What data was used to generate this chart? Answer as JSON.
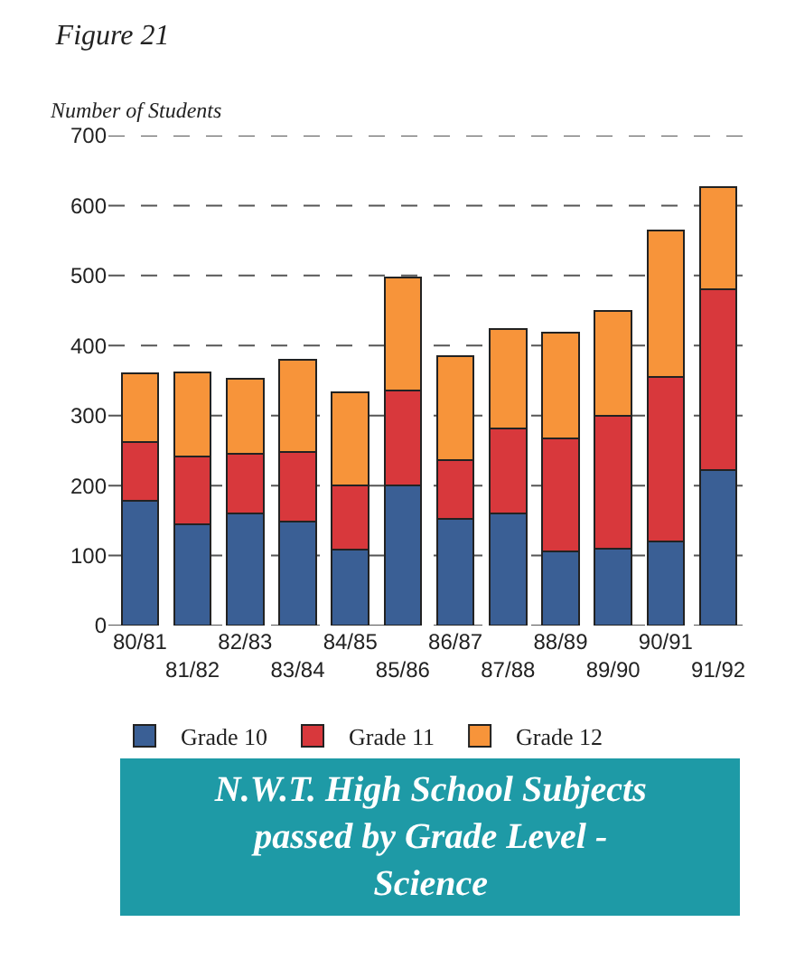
{
  "chart_data": {
    "type": "bar",
    "stacked": true,
    "title": "Figure 21",
    "ylabel": "Number of Students",
    "subtitle": "N.W.T. High School Subjects passed by Grade Level - Science",
    "categories": [
      "80/81",
      "81/82",
      "82/83",
      "83/84",
      "84/85",
      "85/86",
      "86/87",
      "87/88",
      "88/89",
      "89/90",
      "90/91",
      "91/92"
    ],
    "series": [
      {
        "name": "Grade 10",
        "color": "#3a5f95",
        "values": [
          178,
          145,
          160,
          148,
          108,
          200,
          152,
          160,
          106,
          110,
          120,
          222
        ]
      },
      {
        "name": "Grade 11",
        "color": "#d8383c",
        "values": [
          84,
          97,
          86,
          100,
          92,
          136,
          84,
          122,
          161,
          190,
          235,
          258
        ]
      },
      {
        "name": "Grade 12",
        "color": "#f7943a",
        "values": [
          98,
          120,
          107,
          132,
          133,
          161,
          149,
          141,
          151,
          150,
          210,
          147
        ]
      }
    ],
    "ylim": [
      0,
      700
    ],
    "yticks": [
      0,
      100,
      200,
      300,
      400,
      500,
      600,
      700
    ],
    "grid": "y",
    "legend": "bottom"
  }
}
